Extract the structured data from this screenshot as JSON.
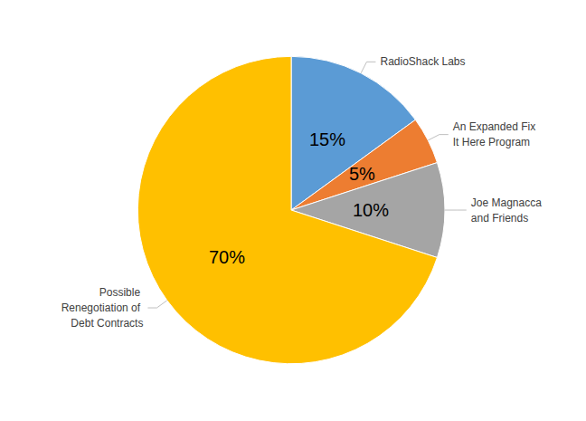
{
  "chart_data": {
    "type": "pie",
    "categories": [
      "RadioShack Labs",
      "An Expanded Fix It Here Program",
      "Joe Magnacca and Friends",
      "Possible Renegotiation of Debt Contracts"
    ],
    "values": [
      15,
      5,
      10,
      70
    ],
    "value_labels": [
      "15%",
      "5%",
      "10%",
      "70%"
    ],
    "colors": [
      "#5B9BD5",
      "#ED7D31",
      "#A5A5A5",
      "#FFC000"
    ],
    "data_labels": true
  }
}
